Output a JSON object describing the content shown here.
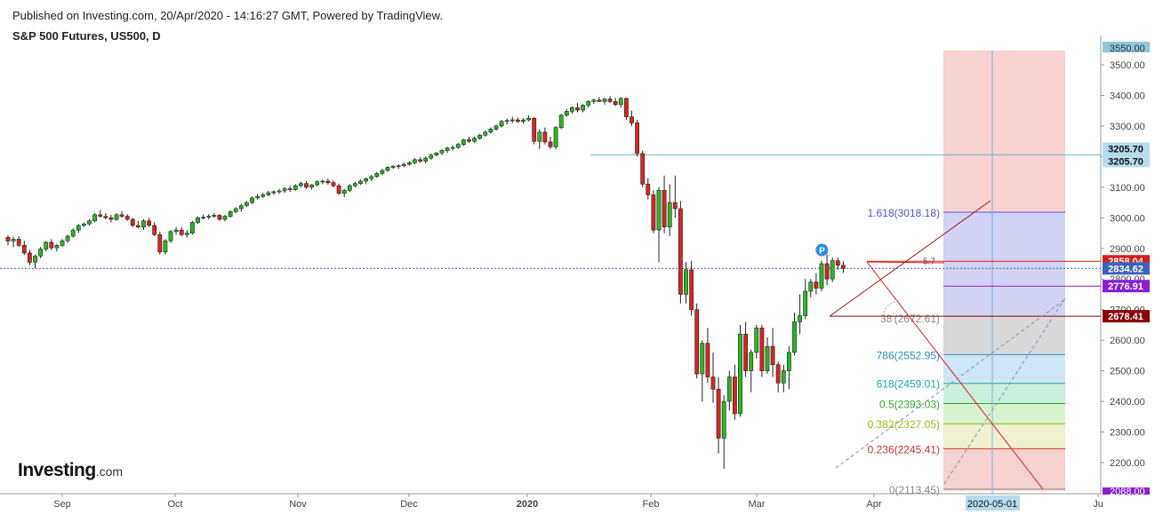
{
  "header": {
    "published": "Published on Investing.com, 20/Apr/2020 - 14:16:27 GMT, Powered by TradingView.",
    "title": "S&P 500 Futures, US500, D"
  },
  "logo": {
    "brand": "Investing",
    "suffix": ".com"
  },
  "colors": {
    "up": "#22bb22",
    "down": "#dd2222",
    "grid": "#e6e6e6"
  },
  "chart_data": {
    "type": "candlestick",
    "title": "S&P 500 Futures, US500, D",
    "ylim": [
      2113.45,
      3565
    ],
    "y_ticks": [
      2200,
      2300,
      2400,
      2500,
      2600,
      2700,
      2800,
      2900,
      3000,
      3100,
      3200,
      3300,
      3400,
      3500
    ],
    "x_ticks": [
      "Sep",
      "Oct",
      "Nov",
      "Dec",
      "2020",
      "Feb",
      "Mar",
      "Apr",
      "Ju"
    ],
    "bold_x_ticks": [
      "2020"
    ],
    "crosshair_date_label": "2020-05-01",
    "series": [
      {
        "name": "US500",
        "ohlc": [
          [
            2936,
            2944,
            2910,
            2924
          ],
          [
            2924,
            2938,
            2904,
            2930
          ],
          [
            2930,
            2940,
            2905,
            2910
          ],
          [
            2910,
            2925,
            2878,
            2885
          ],
          [
            2885,
            2895,
            2845,
            2855
          ],
          [
            2855,
            2880,
            2835,
            2875
          ],
          [
            2875,
            2905,
            2868,
            2898
          ],
          [
            2898,
            2925,
            2890,
            2920
          ],
          [
            2920,
            2930,
            2895,
            2902
          ],
          [
            2902,
            2915,
            2890,
            2910
          ],
          [
            2910,
            2930,
            2905,
            2925
          ],
          [
            2925,
            2945,
            2918,
            2940
          ],
          [
            2940,
            2965,
            2935,
            2960
          ],
          [
            2960,
            2980,
            2950,
            2975
          ],
          [
            2975,
            2985,
            2970,
            2980
          ],
          [
            2980,
            2995,
            2975,
            2990
          ],
          [
            2990,
            3015,
            2985,
            3010
          ],
          [
            3010,
            3025,
            3000,
            3005
          ],
          [
            3005,
            3015,
            2995,
            3000
          ],
          [
            3000,
            3010,
            2985,
            2995
          ],
          [
            2995,
            3015,
            2990,
            3010
          ],
          [
            3010,
            3022,
            3000,
            3005
          ],
          [
            3005,
            3012,
            2990,
            2995
          ],
          [
            2995,
            3000,
            2970,
            2975
          ],
          [
            2975,
            2990,
            2965,
            2970
          ],
          [
            2970,
            2995,
            2960,
            2990
          ],
          [
            2990,
            3000,
            2970,
            2975
          ],
          [
            2975,
            2985,
            2940,
            2945
          ],
          [
            2945,
            2955,
            2880,
            2888
          ],
          [
            2888,
            2930,
            2880,
            2925
          ],
          [
            2925,
            2960,
            2918,
            2955
          ],
          [
            2955,
            2970,
            2945,
            2960
          ],
          [
            2960,
            2970,
            2940,
            2945
          ],
          [
            2945,
            2960,
            2935,
            2950
          ],
          [
            2950,
            2990,
            2945,
            2985
          ],
          [
            2985,
            3005,
            2980,
            3000
          ],
          [
            3000,
            3010,
            2995,
            3002
          ],
          [
            3002,
            3012,
            2995,
            3005
          ],
          [
            3005,
            3015,
            3000,
            3008
          ],
          [
            3008,
            3012,
            2990,
            2995
          ],
          [
            2995,
            3010,
            2988,
            3005
          ],
          [
            3005,
            3025,
            3000,
            3020
          ],
          [
            3020,
            3035,
            3015,
            3030
          ],
          [
            3030,
            3045,
            3020,
            3040
          ],
          [
            3040,
            3055,
            3035,
            3050
          ],
          [
            3050,
            3070,
            3045,
            3065
          ],
          [
            3065,
            3078,
            3060,
            3070
          ],
          [
            3070,
            3082,
            3065,
            3075
          ],
          [
            3075,
            3088,
            3070,
            3082
          ],
          [
            3082,
            3090,
            3075,
            3085
          ],
          [
            3085,
            3095,
            3078,
            3088
          ],
          [
            3088,
            3100,
            3082,
            3095
          ],
          [
            3095,
            3105,
            3085,
            3092
          ],
          [
            3092,
            3110,
            3088,
            3105
          ],
          [
            3105,
            3118,
            3100,
            3112
          ],
          [
            3112,
            3120,
            3095,
            3100
          ],
          [
            3100,
            3110,
            3092,
            3108
          ],
          [
            3108,
            3122,
            3102,
            3118
          ],
          [
            3118,
            3125,
            3110,
            3120
          ],
          [
            3120,
            3128,
            3108,
            3115
          ],
          [
            3115,
            3122,
            3100,
            3105
          ],
          [
            3105,
            3112,
            3075,
            3080
          ],
          [
            3080,
            3095,
            3068,
            3090
          ],
          [
            3090,
            3110,
            3085,
            3105
          ],
          [
            3105,
            3118,
            3100,
            3112
          ],
          [
            3112,
            3125,
            3108,
            3120
          ],
          [
            3120,
            3132,
            3110,
            3128
          ],
          [
            3128,
            3140,
            3120,
            3135
          ],
          [
            3135,
            3150,
            3130,
            3145
          ],
          [
            3145,
            3160,
            3140,
            3155
          ],
          [
            3155,
            3168,
            3150,
            3165
          ],
          [
            3165,
            3172,
            3160,
            3168
          ],
          [
            3168,
            3175,
            3160,
            3170
          ],
          [
            3170,
            3180,
            3165,
            3175
          ],
          [
            3175,
            3185,
            3170,
            3180
          ],
          [
            3180,
            3195,
            3175,
            3190
          ],
          [
            3190,
            3198,
            3180,
            3185
          ],
          [
            3185,
            3200,
            3178,
            3195
          ],
          [
            3195,
            3210,
            3190,
            3205
          ],
          [
            3205,
            3215,
            3200,
            3212
          ],
          [
            3212,
            3225,
            3205,
            3220
          ],
          [
            3220,
            3232,
            3212,
            3228
          ],
          [
            3228,
            3238,
            3220,
            3230
          ],
          [
            3230,
            3245,
            3225,
            3240
          ],
          [
            3240,
            3258,
            3235,
            3255
          ],
          [
            3255,
            3265,
            3245,
            3250
          ],
          [
            3250,
            3265,
            3245,
            3260
          ],
          [
            3260,
            3275,
            3255,
            3270
          ],
          [
            3270,
            3285,
            3265,
            3280
          ],
          [
            3280,
            3295,
            3275,
            3290
          ],
          [
            3290,
            3305,
            3285,
            3300
          ],
          [
            3300,
            3320,
            3295,
            3315
          ],
          [
            3315,
            3325,
            3305,
            3318
          ],
          [
            3318,
            3330,
            3310,
            3320
          ],
          [
            3320,
            3328,
            3310,
            3315
          ],
          [
            3315,
            3325,
            3308,
            3320
          ],
          [
            3320,
            3335,
            3315,
            3325
          ],
          [
            3325,
            3330,
            3240,
            3250
          ],
          [
            3250,
            3290,
            3225,
            3280
          ],
          [
            3280,
            3295,
            3240,
            3248
          ],
          [
            3248,
            3265,
            3225,
            3232
          ],
          [
            3232,
            3300,
            3225,
            3295
          ],
          [
            3295,
            3340,
            3290,
            3335
          ],
          [
            3335,
            3355,
            3330,
            3348
          ],
          [
            3348,
            3365,
            3340,
            3360
          ],
          [
            3360,
            3375,
            3345,
            3352
          ],
          [
            3352,
            3372,
            3345,
            3368
          ],
          [
            3368,
            3385,
            3360,
            3380
          ],
          [
            3380,
            3390,
            3372,
            3385
          ],
          [
            3385,
            3395,
            3378,
            3380
          ],
          [
            3380,
            3392,
            3370,
            3388
          ],
          [
            3388,
            3398,
            3375,
            3380
          ],
          [
            3380,
            3392,
            3365,
            3370
          ],
          [
            3370,
            3395,
            3360,
            3390
          ],
          [
            3390,
            3393,
            3320,
            3330
          ],
          [
            3330,
            3350,
            3300,
            3310
          ],
          [
            3310,
            3320,
            3200,
            3210
          ],
          [
            3210,
            3220,
            3100,
            3110
          ],
          [
            3110,
            3130,
            3060,
            3075
          ],
          [
            3075,
            3090,
            2950,
            2960
          ],
          [
            2960,
            3100,
            2855,
            3090
          ],
          [
            3090,
            3138,
            2950,
            2970
          ],
          [
            2970,
            3110,
            2940,
            3050
          ],
          [
            3050,
            3138,
            3000,
            3030
          ],
          [
            3030,
            3055,
            2720,
            2750
          ],
          [
            2750,
            2855,
            2720,
            2830
          ],
          [
            2830,
            2860,
            2680,
            2700
          ],
          [
            2700,
            2720,
            2475,
            2490
          ],
          [
            2490,
            2600,
            2400,
            2590
          ],
          [
            2590,
            2640,
            2460,
            2480
          ],
          [
            2480,
            2560,
            2395,
            2440
          ],
          [
            2440,
            2480,
            2230,
            2280
          ],
          [
            2280,
            2420,
            2180,
            2400
          ],
          [
            2400,
            2500,
            2370,
            2480
          ],
          [
            2480,
            2520,
            2340,
            2360
          ],
          [
            2360,
            2650,
            2350,
            2620
          ],
          [
            2620,
            2660,
            2480,
            2500
          ],
          [
            2500,
            2570,
            2430,
            2560
          ],
          [
            2560,
            2650,
            2540,
            2640
          ],
          [
            2640,
            2650,
            2480,
            2500
          ],
          [
            2500,
            2610,
            2490,
            2580
          ],
          [
            2580,
            2640,
            2480,
            2520
          ],
          [
            2520,
            2530,
            2430,
            2460
          ],
          [
            2460,
            2520,
            2430,
            2500
          ],
          [
            2500,
            2580,
            2440,
            2560
          ],
          [
            2560,
            2690,
            2550,
            2660
          ],
          [
            2660,
            2750,
            2620,
            2680
          ],
          [
            2680,
            2800,
            2670,
            2760
          ],
          [
            2760,
            2800,
            2740,
            2790
          ],
          [
            2790,
            2820,
            2750,
            2770
          ],
          [
            2770,
            2860,
            2760,
            2850
          ],
          [
            2850,
            2880,
            2780,
            2800
          ],
          [
            2800,
            2870,
            2790,
            2860
          ],
          [
            2860,
            2870,
            2830,
            2845
          ],
          [
            2845,
            2858,
            2820,
            2834.62
          ]
        ]
      }
    ],
    "levels": [
      {
        "price": 3205.7,
        "label": "3205.70",
        "color": "#6fb5d0"
      },
      {
        "price": 2858.04,
        "label": "2858.04",
        "color": "#d81e1e"
      },
      {
        "price": 2834.62,
        "label": "2834.62",
        "color": "#3a63b8"
      },
      {
        "price": 2776.91,
        "label": "2776.91",
        "color": "#8a1fd1"
      },
      {
        "price": 2678.41,
        "label": "2678.41",
        "color": "#8b0000"
      }
    ],
    "top_partial_label": "3550.00",
    "bottom_partial_label": "2088.00",
    "fib_levels": [
      {
        "ratio": 1.618,
        "price": 3018.18,
        "label": "1.618(3018.18)",
        "color": "#5555cc",
        "fill": "#d2d2f2"
      },
      {
        "ratio": 0.786,
        "price": 2552.95,
        "label": "786(2552.95)",
        "color": "#2d8fbf",
        "fill": "#d9d9d9"
      },
      {
        "ratio": 0.618,
        "price": 2459.01,
        "label": "618(2459.01)",
        "color": "#1aa8a0",
        "fill": "#cfe6f5"
      },
      {
        "ratio": 0.5,
        "price": 2393.03,
        "label": "0.5(2393.03)",
        "color": "#33aa33",
        "fill": "#cdeede"
      },
      {
        "ratio": 0.382,
        "price": 2327.05,
        "label": "0.382(2327.05)",
        "color": "#99bb22",
        "fill": "#d8f2d0"
      },
      {
        "ratio": 0.236,
        "price": 2245.41,
        "label": "0.236(2245.41)",
        "color": "#cc3333",
        "fill": "#eef0d0"
      },
      {
        "ratio": 0,
        "price": 2113.45,
        "label": "0(2113.45)",
        "color": "#888888",
        "fill": "#f6d2d2"
      }
    ],
    "fib_top_fill": "#f6d2d2",
    "partial_labels": [
      {
        "text": "38",
        "price": 2672.61
      },
      {
        "text": "(2672.61)",
        "price": 2672.61
      },
      {
        "text": "5.7",
        "price": 2860
      }
    ],
    "pin_label": "P"
  }
}
